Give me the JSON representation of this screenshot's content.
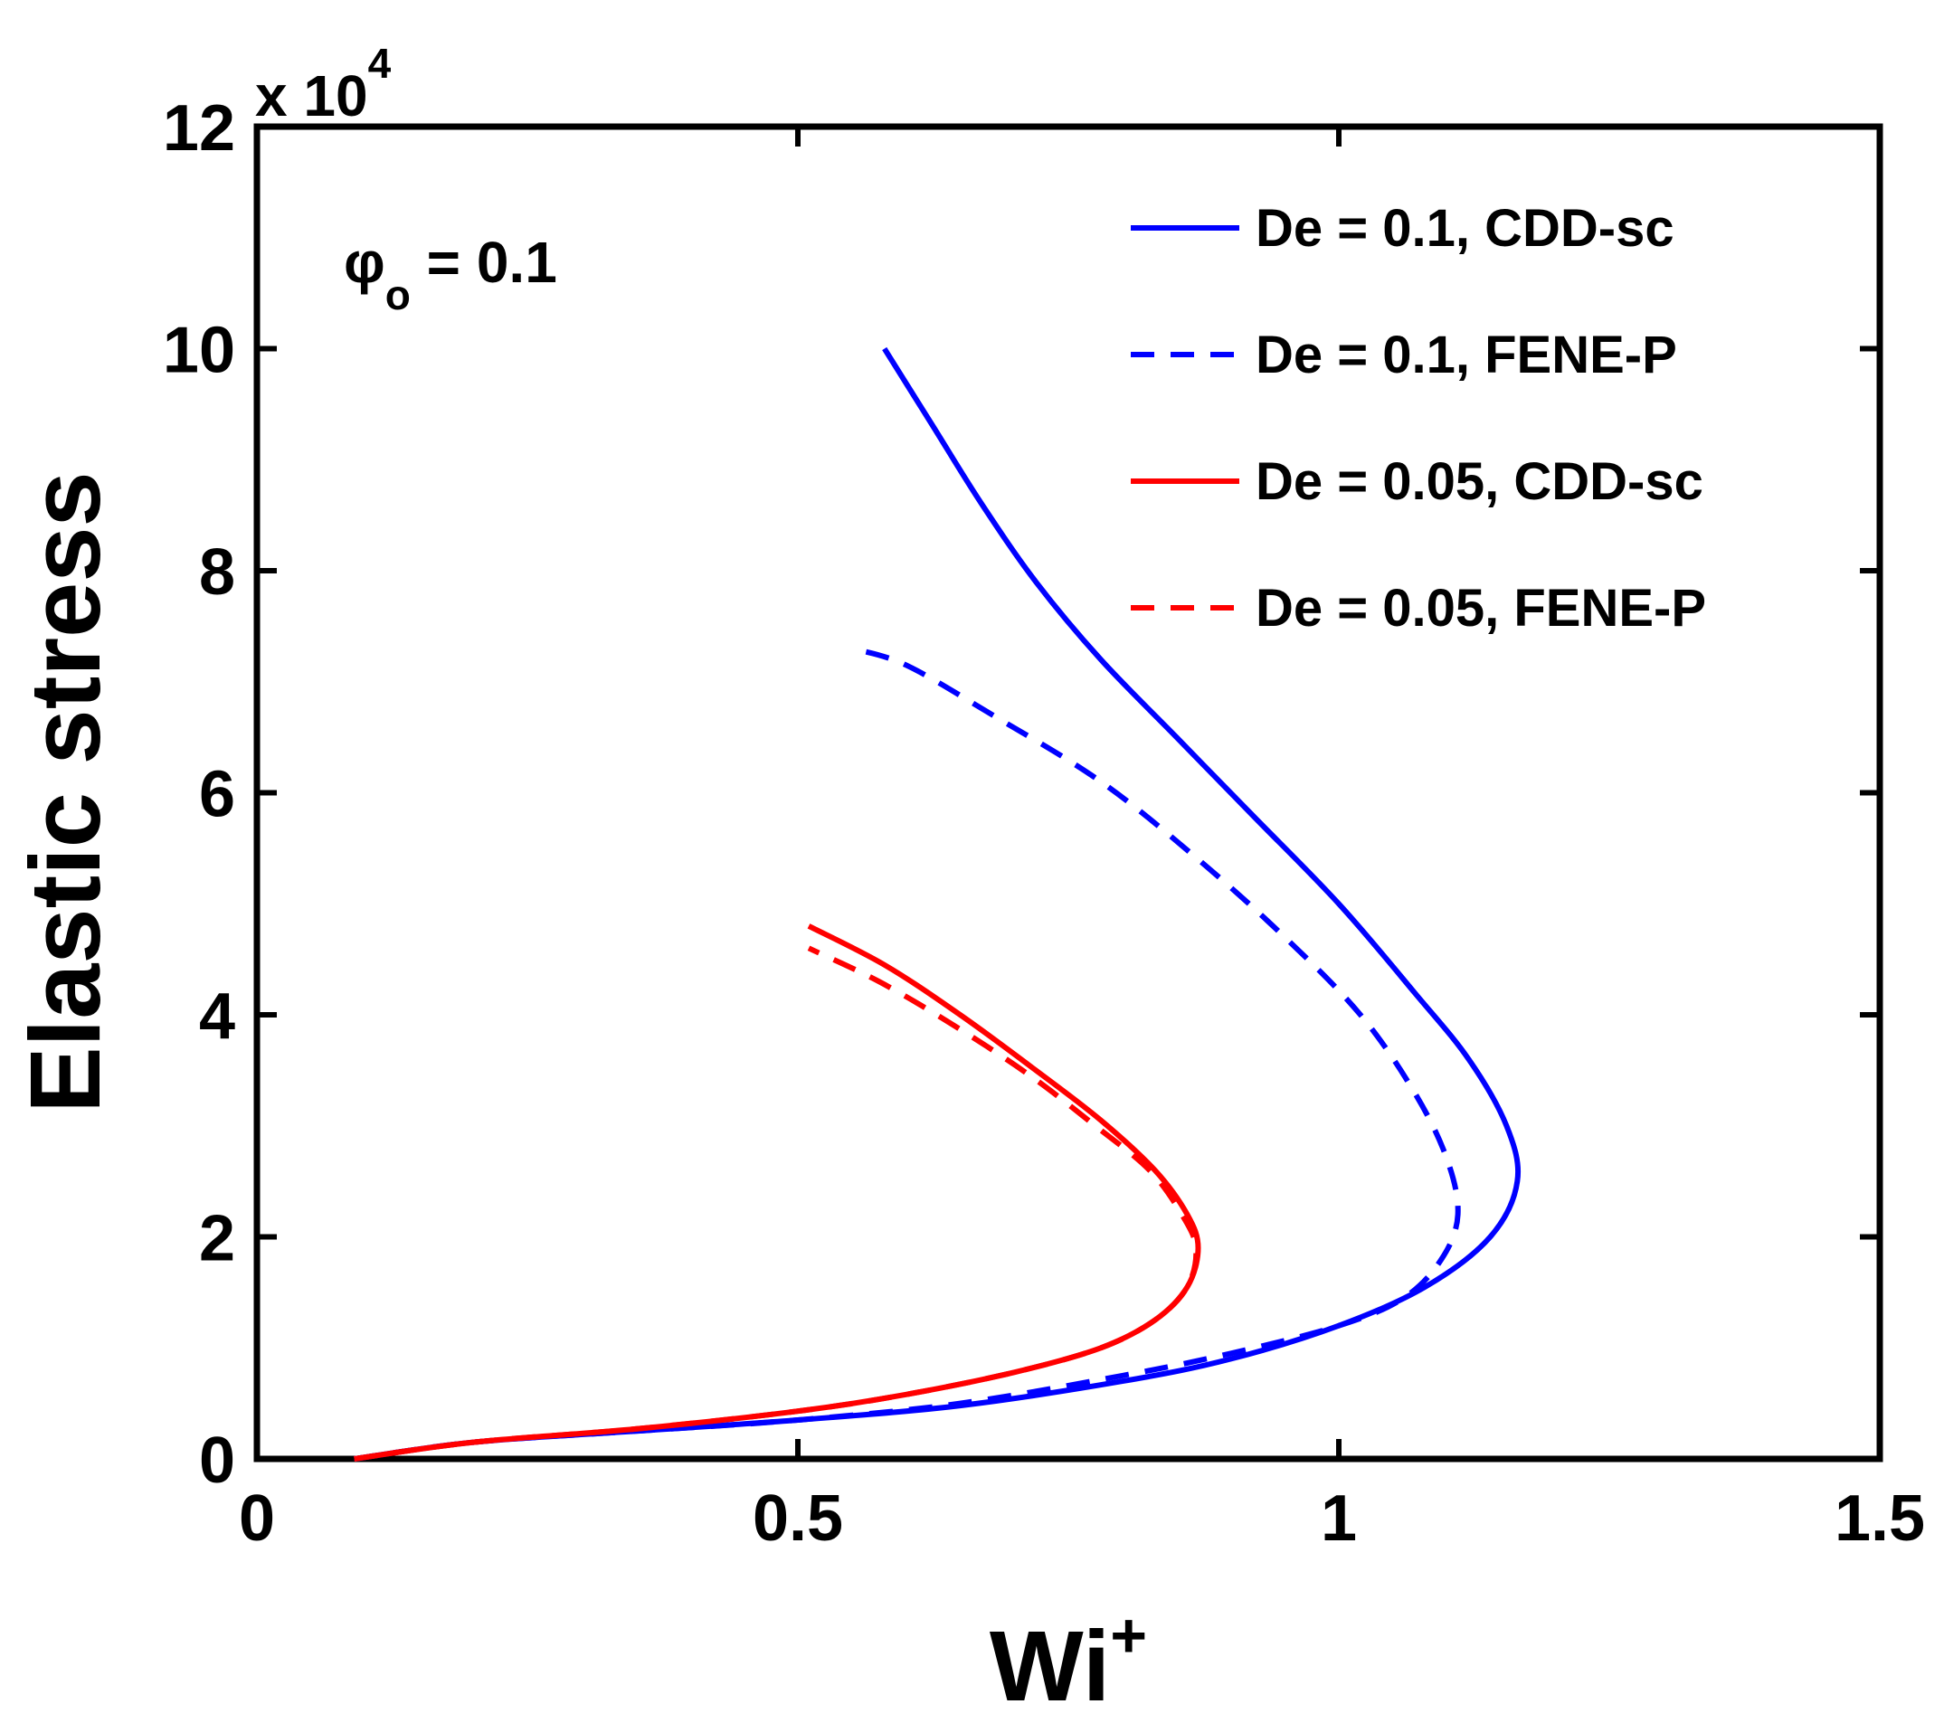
{
  "chart_data": {
    "type": "line",
    "xlabel": "Wi",
    "xlabel_sup": "+",
    "ylabel": "Elastic stress",
    "xlim": [
      0,
      1.5
    ],
    "ylim": [
      0,
      120000
    ],
    "xticks": [
      0,
      0.5,
      1,
      1.5
    ],
    "xtick_labels": [
      "0",
      "0.5",
      "1",
      "1.5"
    ],
    "yticks": [
      0,
      20000,
      40000,
      60000,
      80000,
      100000,
      120000
    ],
    "ytick_labels": [
      "0",
      "2",
      "4",
      "6",
      "8",
      "10",
      "12"
    ],
    "y_multiplier": {
      "prefix": "x 10",
      "exponent": "4"
    },
    "annotation": {
      "symbol": "φ",
      "subscript": "o",
      "text": " = 0.1"
    },
    "legend_position": "top-right",
    "series": [
      {
        "name": "De = 0.1, CDD-sc",
        "color": "#0000ff",
        "dash": "solid",
        "points": [
          [
            0.09,
            0
          ],
          [
            0.2,
            1500
          ],
          [
            0.35,
            2500
          ],
          [
            0.5,
            3500
          ],
          [
            0.65,
            4800
          ],
          [
            0.8,
            7000
          ],
          [
            0.9,
            9000
          ],
          [
            1.0,
            12000
          ],
          [
            1.08,
            15500
          ],
          [
            1.14,
            20000
          ],
          [
            1.165,
            25000
          ],
          [
            1.155,
            30000
          ],
          [
            1.12,
            36000
          ],
          [
            1.07,
            42000
          ],
          [
            1.0,
            50000
          ],
          [
            0.92,
            58000
          ],
          [
            0.85,
            65000
          ],
          [
            0.78,
            72000
          ],
          [
            0.72,
            79000
          ],
          [
            0.67,
            86000
          ],
          [
            0.625,
            93000
          ],
          [
            0.58,
            100000
          ]
        ]
      },
      {
        "name": "De = 0.1, FENE-P",
        "color": "#0000ff",
        "dash": "dashed",
        "points": [
          [
            0.09,
            0
          ],
          [
            0.2,
            1500
          ],
          [
            0.35,
            2500
          ],
          [
            0.5,
            3500
          ],
          [
            0.65,
            5000
          ],
          [
            0.8,
            7500
          ],
          [
            0.9,
            9500
          ],
          [
            1.0,
            12000
          ],
          [
            1.06,
            14500
          ],
          [
            1.095,
            18000
          ],
          [
            1.11,
            22000
          ],
          [
            1.1,
            27000
          ],
          [
            1.07,
            33000
          ],
          [
            1.02,
            40000
          ],
          [
            0.95,
            47000
          ],
          [
            0.87,
            54000
          ],
          [
            0.78,
            61000
          ],
          [
            0.68,
            67000
          ],
          [
            0.6,
            71500
          ],
          [
            0.55,
            73000
          ]
        ]
      },
      {
        "name": "De = 0.05, CDD-sc",
        "color": "#ff0000",
        "dash": "solid",
        "points": [
          [
            0.09,
            0
          ],
          [
            0.2,
            1500
          ],
          [
            0.35,
            2700
          ],
          [
            0.5,
            4300
          ],
          [
            0.6,
            5800
          ],
          [
            0.7,
            7800
          ],
          [
            0.78,
            10000
          ],
          [
            0.83,
            12500
          ],
          [
            0.86,
            15500
          ],
          [
            0.87,
            19000
          ],
          [
            0.86,
            22000
          ],
          [
            0.83,
            26000
          ],
          [
            0.78,
            30500
          ],
          [
            0.72,
            35000
          ],
          [
            0.65,
            40000
          ],
          [
            0.58,
            44500
          ],
          [
            0.51,
            48000
          ]
        ]
      },
      {
        "name": "De = 0.05, FENE-P",
        "color": "#ff0000",
        "dash": "dashed",
        "points": [
          [
            0.09,
            0
          ],
          [
            0.2,
            1500
          ],
          [
            0.35,
            2700
          ],
          [
            0.5,
            4300
          ],
          [
            0.6,
            5800
          ],
          [
            0.7,
            7800
          ],
          [
            0.78,
            10000
          ],
          [
            0.83,
            12500
          ],
          [
            0.86,
            15500
          ],
          [
            0.868,
            19000
          ],
          [
            0.855,
            22000
          ],
          [
            0.825,
            26000
          ],
          [
            0.775,
            30000
          ],
          [
            0.715,
            34500
          ],
          [
            0.645,
            39000
          ],
          [
            0.575,
            43000
          ],
          [
            0.51,
            46000
          ]
        ]
      }
    ]
  }
}
